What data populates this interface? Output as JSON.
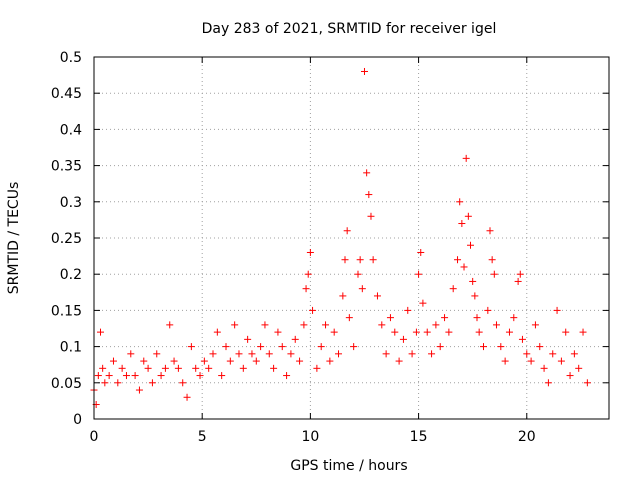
{
  "chart_data": {
    "type": "scatter",
    "title": "Day 283 of 2021, SRMTID for receiver igel",
    "xlabel": "GPS time / hours",
    "ylabel": "SRMTID / TECUs",
    "xlim": [
      0,
      23.8
    ],
    "ylim": [
      0,
      0.5
    ],
    "x_ticks": [
      0,
      5,
      10,
      15,
      20
    ],
    "x_tick_labels": [
      "0",
      "5",
      "10",
      "15",
      "20"
    ],
    "y_ticks": [
      0,
      0.05,
      0.1,
      0.15,
      0.2,
      0.25,
      0.3,
      0.35,
      0.4,
      0.45,
      0.5
    ],
    "y_tick_labels": [
      "0",
      "0.05",
      "0.1",
      "0.15",
      "0.2",
      "0.25",
      "0.3",
      "0.35",
      "0.4",
      "0.45",
      "0.5"
    ],
    "grid": true,
    "legend": "none",
    "marker": "+",
    "color": "#ff0000",
    "series": [
      {
        "x": [
          0.0,
          0.1,
          0.2,
          0.3,
          0.4,
          0.5,
          0.7,
          0.9,
          1.1,
          1.3,
          1.5,
          1.7,
          1.9,
          2.1,
          2.3,
          2.5,
          2.7,
          2.9,
          3.1,
          3.3,
          3.5,
          3.7,
          3.9,
          4.1,
          4.3,
          4.5,
          4.7,
          4.9,
          5.1,
          5.3,
          5.5,
          5.7,
          5.9,
          6.1,
          6.3,
          6.5,
          6.7,
          6.9,
          7.1,
          7.3,
          7.5,
          7.7,
          7.9,
          8.1,
          8.3,
          8.5,
          8.7,
          8.9,
          9.1,
          9.3,
          9.5,
          9.7,
          9.8,
          9.9,
          10.0,
          10.1,
          10.3,
          10.5,
          10.7,
          10.9,
          11.1,
          11.3,
          11.5,
          11.6,
          11.7,
          11.8,
          12.0,
          12.2,
          12.3,
          12.4,
          12.5,
          12.6,
          12.7,
          12.8,
          12.9,
          13.1,
          13.3,
          13.5,
          13.7,
          13.9,
          14.1,
          14.3,
          14.5,
          14.7,
          14.9,
          15.0,
          15.1,
          15.2,
          15.4,
          15.6,
          15.8,
          16.0,
          16.2,
          16.4,
          16.6,
          16.8,
          16.9,
          17.0,
          17.1,
          17.2,
          17.3,
          17.4,
          17.5,
          17.6,
          17.7,
          17.8,
          18.0,
          18.2,
          18.3,
          18.4,
          18.5,
          18.6,
          18.8,
          19.0,
          19.2,
          19.4,
          19.6,
          19.7,
          19.8,
          20.0,
          20.2,
          20.4,
          20.6,
          20.8,
          21.0,
          21.2,
          21.4,
          21.6,
          21.8,
          22.0,
          22.2,
          22.4,
          22.6,
          22.8
        ],
        "y": [
          0.04,
          0.02,
          0.06,
          0.12,
          0.07,
          0.05,
          0.06,
          0.08,
          0.05,
          0.07,
          0.06,
          0.09,
          0.06,
          0.04,
          0.08,
          0.07,
          0.05,
          0.09,
          0.06,
          0.07,
          0.13,
          0.08,
          0.07,
          0.05,
          0.03,
          0.1,
          0.07,
          0.06,
          0.08,
          0.07,
          0.09,
          0.12,
          0.06,
          0.1,
          0.08,
          0.13,
          0.09,
          0.07,
          0.11,
          0.09,
          0.08,
          0.1,
          0.13,
          0.09,
          0.07,
          0.12,
          0.1,
          0.06,
          0.09,
          0.11,
          0.08,
          0.13,
          0.18,
          0.2,
          0.23,
          0.15,
          0.07,
          0.1,
          0.13,
          0.08,
          0.12,
          0.09,
          0.17,
          0.22,
          0.26,
          0.14,
          0.1,
          0.2,
          0.22,
          0.18,
          0.48,
          0.34,
          0.31,
          0.28,
          0.22,
          0.17,
          0.13,
          0.09,
          0.14,
          0.12,
          0.08,
          0.11,
          0.15,
          0.09,
          0.12,
          0.2,
          0.23,
          0.16,
          0.12,
          0.09,
          0.13,
          0.1,
          0.14,
          0.12,
          0.18,
          0.22,
          0.3,
          0.27,
          0.21,
          0.36,
          0.28,
          0.24,
          0.19,
          0.17,
          0.14,
          0.12,
          0.1,
          0.15,
          0.26,
          0.22,
          0.2,
          0.13,
          0.1,
          0.08,
          0.12,
          0.14,
          0.19,
          0.2,
          0.11,
          0.09,
          0.08,
          0.13,
          0.1,
          0.07,
          0.05,
          0.09,
          0.15,
          0.08,
          0.12,
          0.06,
          0.09,
          0.07,
          0.12,
          0.05
        ]
      }
    ]
  }
}
